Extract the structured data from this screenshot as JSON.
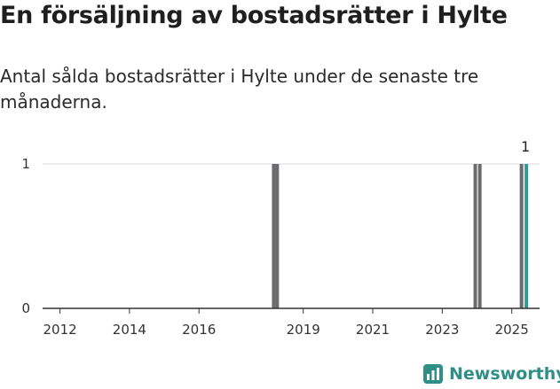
{
  "header": {
    "title": "En försäljning av bostadsrätter i Hylte",
    "subtitle": "Antal sålda bostadsrätter i Hylte under de senaste tre månaderna."
  },
  "brand": {
    "name": "Newsworthy",
    "icon": "newsworthy-logo-icon",
    "color": "#2f8f87"
  },
  "colors": {
    "bar": "#6b6b6d",
    "highlight": "#2a9d92",
    "grid": "#d9d9d9",
    "axis": "#333333"
  },
  "chart_data": {
    "type": "bar",
    "title": "",
    "xlabel": "",
    "ylabel": "",
    "ylim": [
      0,
      1
    ],
    "yticks": [
      0,
      1
    ],
    "xlim": [
      2011.5,
      2025.8
    ],
    "xticks": [
      2012,
      2014,
      2016,
      2019,
      2021,
      2023,
      2025
    ],
    "grid": true,
    "bars": [
      {
        "x": 2018.15,
        "value": 1
      },
      {
        "x": 2018.25,
        "value": 1
      },
      {
        "x": 2023.95,
        "value": 1
      },
      {
        "x": 2024.08,
        "value": 1
      },
      {
        "x": 2025.28,
        "value": 1
      },
      {
        "x": 2025.42,
        "value": 1,
        "highlight": true,
        "label": "1"
      }
    ]
  }
}
